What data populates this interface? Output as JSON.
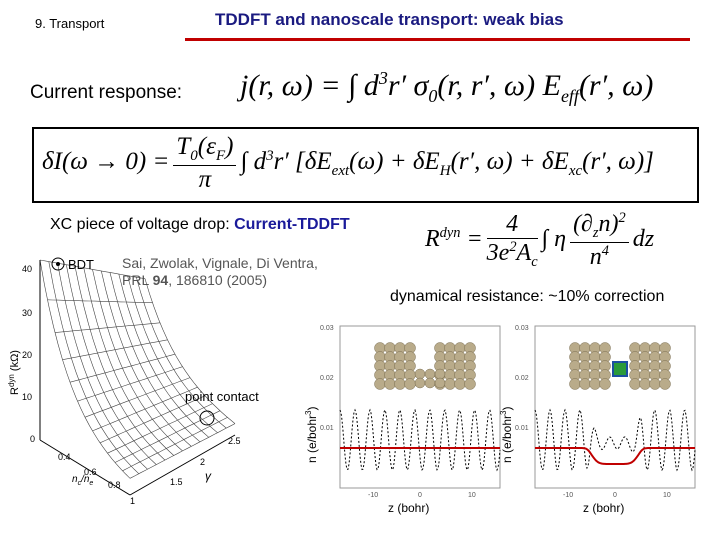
{
  "header": {
    "section": "9. Transport",
    "title": "TDDFT and  nanoscale transport: weak bias"
  },
  "current_response": {
    "label": "Current response:",
    "equation": [
      "j(r, ω) = ∫ d",
      "3",
      "r′ σ",
      "0",
      "(r, r′, ω) E",
      "eff",
      "(r′, ω)"
    ]
  },
  "boxed_equation": [
    "δI(ω → 0) =",
    "T",
    "0",
    "(ε",
    "F",
    ")",
    "π",
    "∫ d",
    "3",
    "r′ [δE",
    "ext",
    "(ω) + δE",
    "H",
    "(r′, ω) + δE",
    "xc",
    "(r′, ω)]"
  ],
  "xc": {
    "heading": "XC piece of voltage drop: ",
    "highlight": "Current-TDDFT",
    "citation_line1": "Sai, Zwolak, Vignale, Di Ventra,",
    "citation_prefix": "PRL ",
    "citation_volume": "94",
    "citation_suffix": ", 186810 (2005)"
  },
  "resistance": {
    "equation": [
      "R",
      "dyn",
      " =",
      "4",
      "3e",
      "2",
      "A",
      "c",
      "∫ η",
      "(∂",
      "z",
      "n)",
      "2",
      "n",
      "4",
      "dz"
    ],
    "note": "dynamical resistance: ~10% correction"
  },
  "left_figure": {
    "legend": "BDT",
    "annotation": "point contact",
    "y_label": "R",
    "y_label_sup": "dyn",
    "y_label_unit": " (kΩ)",
    "y_ticks": [
      "40",
      "30",
      "20",
      "10",
      "0"
    ],
    "x_ticks": [
      "0.4",
      "0.6",
      "0.8",
      "1"
    ],
    "x_label": "n",
    "x_label_rest": "c",
    "x_label_tail": "/n",
    "x_label_end": "e",
    "gamma_ticks": [
      "1.5",
      "2",
      "2.5"
    ],
    "gamma": "γ"
  },
  "right_figures": {
    "y_label": "n (e/bohr",
    "y_label_sup": "3",
    "y_label_end": ")",
    "x_label": "z (bohr)",
    "y_ticks": [
      "0.03",
      "0.02",
      "0.01"
    ],
    "x_ticks": [
      "-10",
      "0",
      "10"
    ]
  }
}
